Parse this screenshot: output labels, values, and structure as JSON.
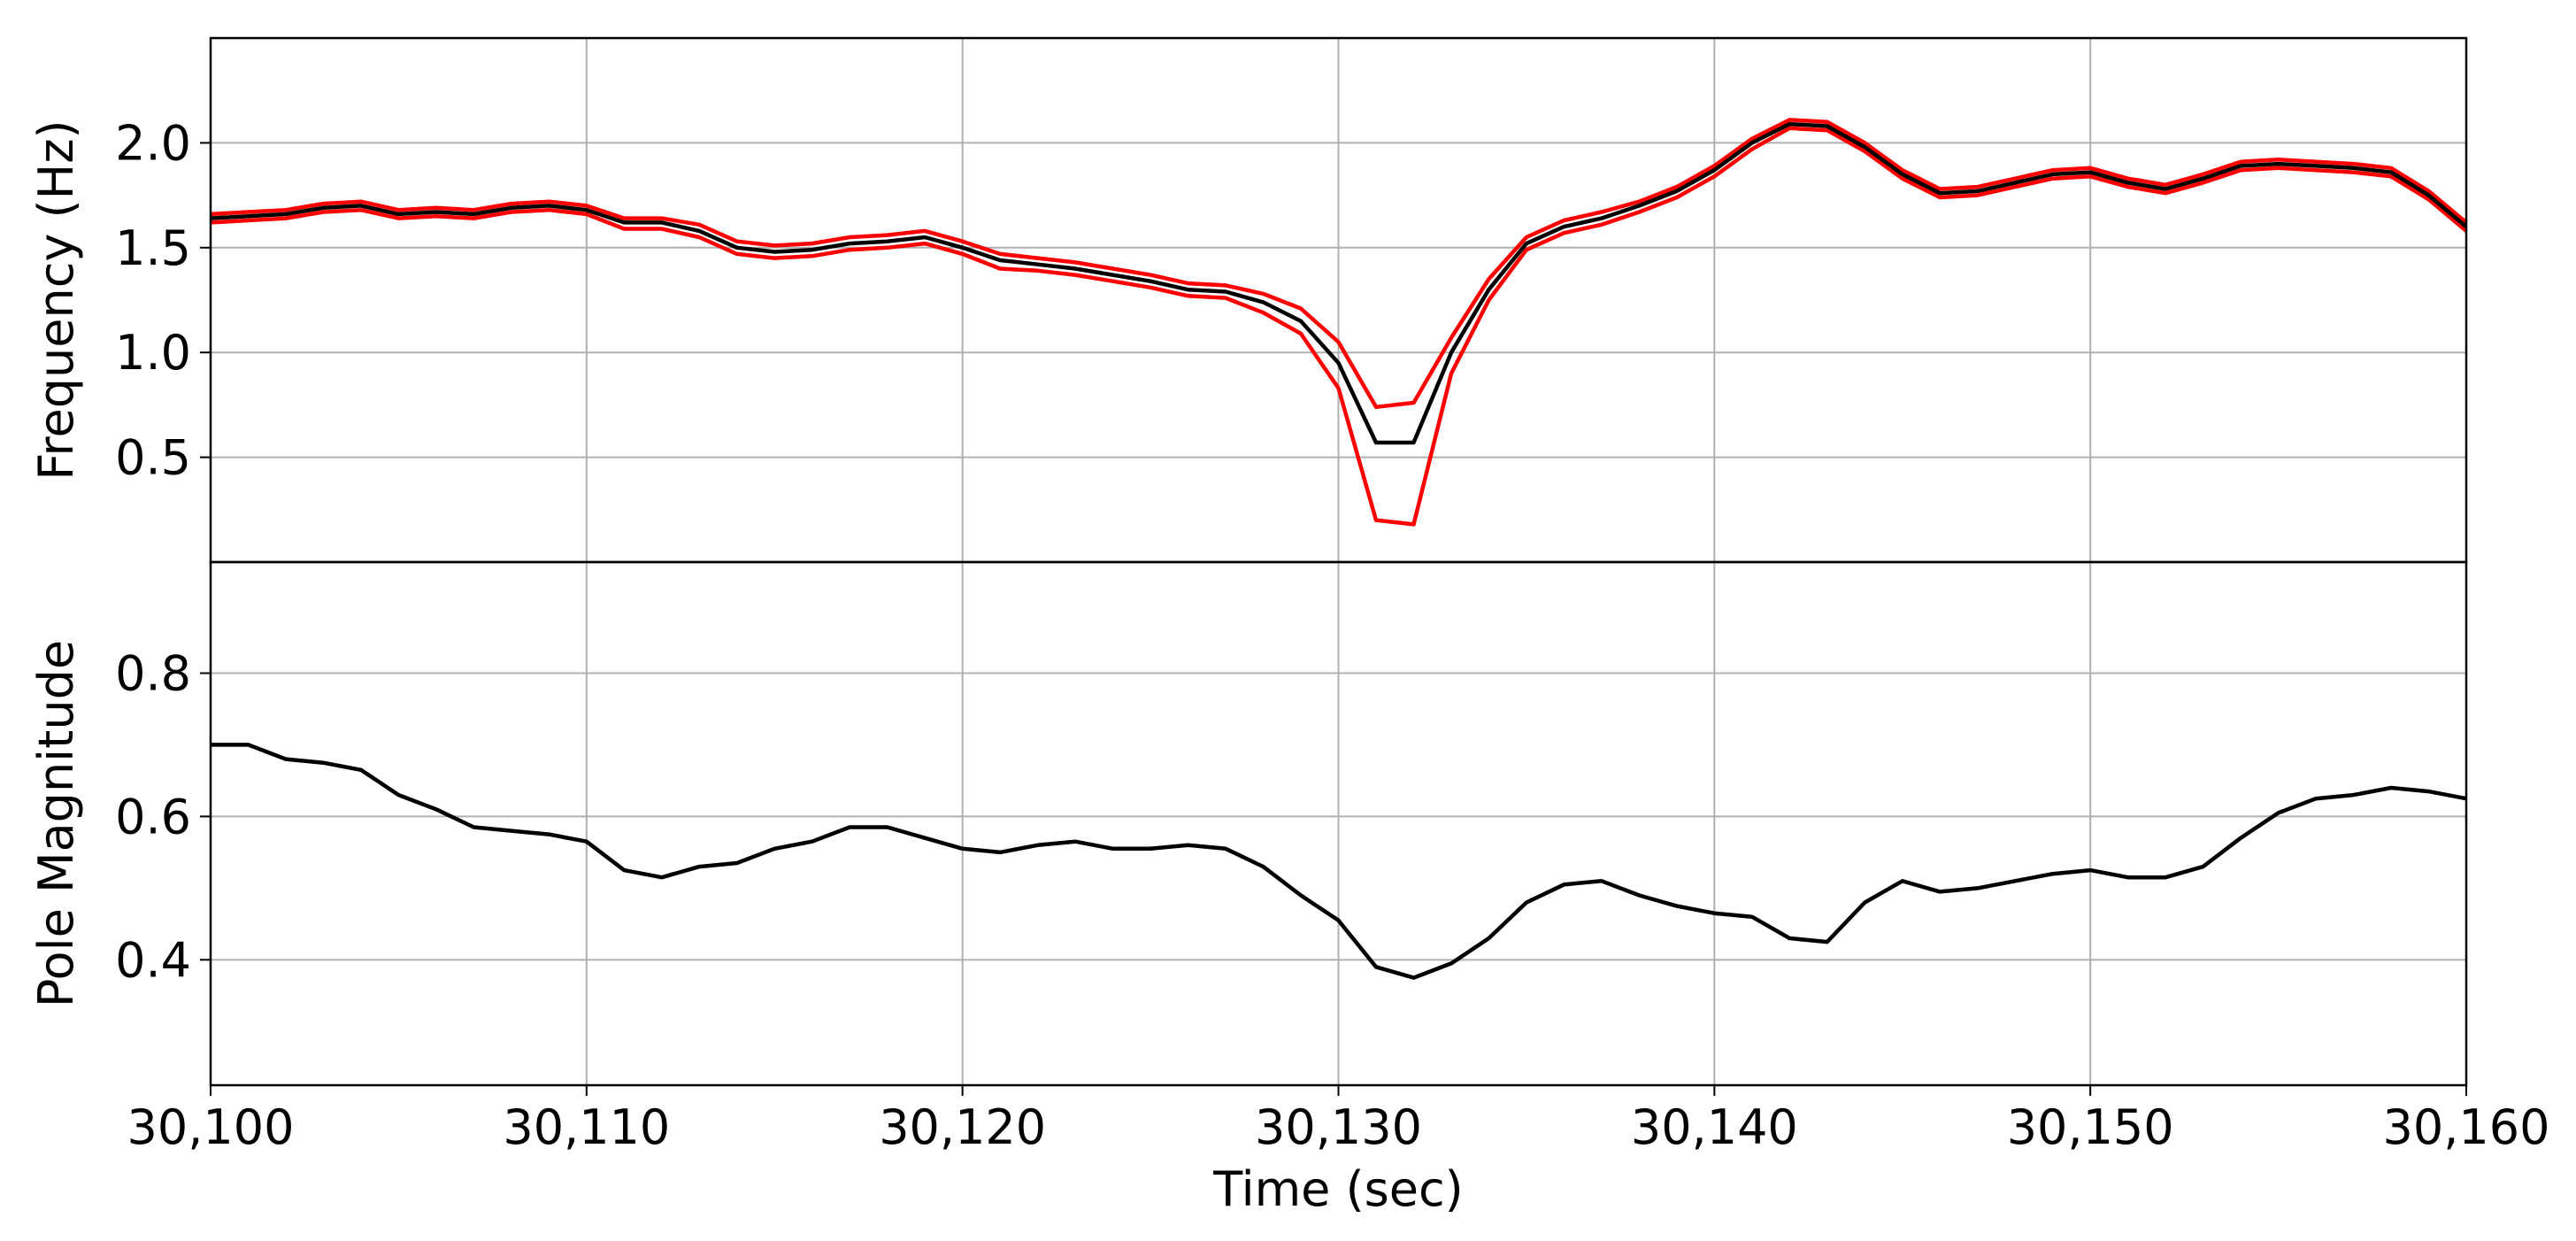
{
  "chart_data": [
    {
      "type": "line",
      "ylabel": "Frequency (Hz)",
      "grid": true,
      "xlim": [
        30100,
        30160
      ],
      "xticks": [
        30100,
        30110,
        30120,
        30130,
        30140,
        30150,
        30160
      ],
      "ylim": [
        0.0,
        2.5
      ],
      "yticks": [
        0.5,
        {
          "value": 1.0,
          "label": "1.0"
        },
        1.5,
        {
          "value": 2.0,
          "label": "2.0"
        }
      ],
      "x": [
        30100,
        30101,
        30102,
        30103,
        30104,
        30105,
        30106,
        30107,
        30108,
        30109,
        30110,
        30111,
        30112,
        30113,
        30114,
        30115,
        30116,
        30117,
        30118,
        30119,
        30120,
        30121,
        30122,
        30123,
        30124,
        30125,
        30126,
        30127,
        30128,
        30129,
        30130,
        30131,
        30132,
        30133,
        30134,
        30135,
        30136,
        30137,
        30138,
        30139,
        30140,
        30141,
        30142,
        30143,
        30144,
        30145,
        30146,
        30147,
        30148,
        30149,
        30150,
        30151,
        30152,
        30153,
        30154,
        30155,
        30156,
        30157,
        30158,
        30159,
        30160
      ],
      "series": [
        {
          "color": "#ff0000",
          "values": [
            1.66,
            1.67,
            1.68,
            1.71,
            1.72,
            1.68,
            1.69,
            1.68,
            1.71,
            1.72,
            1.7,
            1.64,
            1.64,
            1.61,
            1.53,
            1.51,
            1.52,
            1.55,
            1.56,
            1.58,
            1.53,
            1.47,
            1.45,
            1.43,
            1.4,
            1.37,
            1.33,
            1.32,
            1.28,
            1.21,
            1.05,
            0.74,
            0.76,
            1.07,
            1.35,
            1.55,
            1.63,
            1.67,
            1.72,
            1.79,
            1.89,
            2.02,
            2.11,
            2.1,
            2.0,
            1.87,
            1.78,
            1.79,
            1.83,
            1.87,
            1.88,
            1.83,
            1.8,
            1.85,
            1.91,
            1.92,
            1.91,
            1.9,
            1.88,
            1.77,
            1.62
          ]
        },
        {
          "color": "#ff0000",
          "values": [
            1.62,
            1.63,
            1.64,
            1.67,
            1.68,
            1.64,
            1.65,
            1.64,
            1.67,
            1.68,
            1.66,
            1.59,
            1.59,
            1.55,
            1.47,
            1.45,
            1.46,
            1.49,
            1.5,
            1.52,
            1.47,
            1.4,
            1.39,
            1.37,
            1.34,
            1.31,
            1.27,
            1.26,
            1.19,
            1.09,
            0.83,
            0.2,
            0.18,
            0.9,
            1.25,
            1.49,
            1.57,
            1.61,
            1.67,
            1.74,
            1.84,
            1.97,
            2.07,
            2.06,
            1.96,
            1.83,
            1.74,
            1.75,
            1.79,
            1.83,
            1.84,
            1.79,
            1.76,
            1.81,
            1.87,
            1.88,
            1.87,
            1.86,
            1.84,
            1.73,
            1.58
          ]
        },
        {
          "color": "#000000",
          "values": [
            1.64,
            1.65,
            1.66,
            1.69,
            1.7,
            1.66,
            1.67,
            1.66,
            1.69,
            1.7,
            1.68,
            1.62,
            1.62,
            1.58,
            1.5,
            1.48,
            1.49,
            1.52,
            1.53,
            1.55,
            1.5,
            1.44,
            1.42,
            1.4,
            1.37,
            1.34,
            1.3,
            1.29,
            1.24,
            1.15,
            0.95,
            0.57,
            0.57,
            1.0,
            1.3,
            1.52,
            1.6,
            1.64,
            1.7,
            1.77,
            1.87,
            2.0,
            2.09,
            2.08,
            1.98,
            1.85,
            1.76,
            1.77,
            1.81,
            1.85,
            1.86,
            1.81,
            1.78,
            1.83,
            1.89,
            1.9,
            1.89,
            1.88,
            1.86,
            1.75,
            1.6
          ]
        }
      ]
    },
    {
      "type": "line",
      "ylabel": "Pole Magnitude",
      "xlabel": "Time (sec)",
      "grid": true,
      "xlim": [
        30100,
        30160
      ],
      "xticks": [
        {
          "value": 30100,
          "label": "30,100"
        },
        {
          "value": 30110,
          "label": "30,110"
        },
        {
          "value": 30120,
          "label": "30,120"
        },
        {
          "value": 30130,
          "label": "30,130"
        },
        {
          "value": 30140,
          "label": "30,140"
        },
        {
          "value": 30150,
          "label": "30,150"
        },
        {
          "value": 30160,
          "label": "30,160"
        }
      ],
      "ylim": [
        0.225,
        0.955
      ],
      "yticks": [
        0.4,
        0.6,
        0.8
      ],
      "x": [
        30100,
        30101,
        30102,
        30103,
        30104,
        30105,
        30106,
        30107,
        30108,
        30109,
        30110,
        30111,
        30112,
        30113,
        30114,
        30115,
        30116,
        30117,
        30118,
        30119,
        30120,
        30121,
        30122,
        30123,
        30124,
        30125,
        30126,
        30127,
        30128,
        30129,
        30130,
        30131,
        30132,
        30133,
        30134,
        30135,
        30136,
        30137,
        30138,
        30139,
        30140,
        30141,
        30142,
        30143,
        30144,
        30145,
        30146,
        30147,
        30148,
        30149,
        30150,
        30151,
        30152,
        30153,
        30154,
        30155,
        30156,
        30157,
        30158,
        30159,
        30160
      ],
      "series": [
        {
          "color": "#000000",
          "values": [
            0.7,
            0.7,
            0.68,
            0.675,
            0.665,
            0.63,
            0.61,
            0.585,
            0.58,
            0.575,
            0.565,
            0.525,
            0.515,
            0.53,
            0.535,
            0.555,
            0.565,
            0.585,
            0.585,
            0.57,
            0.555,
            0.55,
            0.56,
            0.565,
            0.555,
            0.555,
            0.56,
            0.555,
            0.53,
            0.49,
            0.455,
            0.39,
            0.375,
            0.395,
            0.43,
            0.48,
            0.505,
            0.51,
            0.49,
            0.475,
            0.465,
            0.46,
            0.43,
            0.425,
            0.48,
            0.51,
            0.495,
            0.5,
            0.51,
            0.52,
            0.525,
            0.515,
            0.515,
            0.53,
            0.57,
            0.605,
            0.625,
            0.63,
            0.64,
            0.635,
            0.625
          ]
        }
      ]
    }
  ]
}
